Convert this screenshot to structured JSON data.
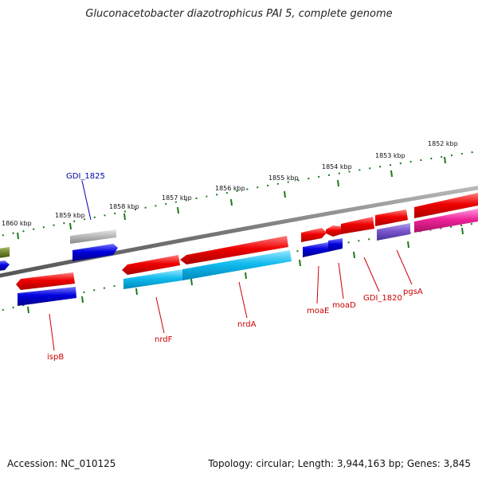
{
  "title": "Gluconacetobacter diazotrophicus PAI 5, complete genome",
  "accession": "Accession: NC_010125",
  "summary": "Topology: circular; Length: 3,944,163 bp; Genes: 3,845",
  "kbp_labels": [
    "1860 kbp",
    "1859 kbp",
    "1858 kbp",
    "1857 kbp",
    "1856 kbp",
    "1855 kbp",
    "1854 kbp",
    "1853 kbp",
    "1852 kbp"
  ],
  "gene_labels": {
    "gdi1825": "GDI_1825",
    "ispB": "ispB",
    "nrdF": "nrdF",
    "nrdA": "nrdA",
    "moaE": "moaE",
    "moaD": "moaD",
    "gdi1820": "GDI_1820",
    "pgsA": "pgsA"
  },
  "colors": {
    "backbone": "#808080",
    "tick": "#1a7a1a",
    "cds": "#ee0000",
    "gene": "#0000dd",
    "rna_grey": "#bbbbbb",
    "light_blue": "#11bbee",
    "pink": "#ee2299",
    "slate": "#7a55cc",
    "olive": "#778833",
    "label_red": "#cc0000",
    "label_blue": "#0000aa"
  }
}
